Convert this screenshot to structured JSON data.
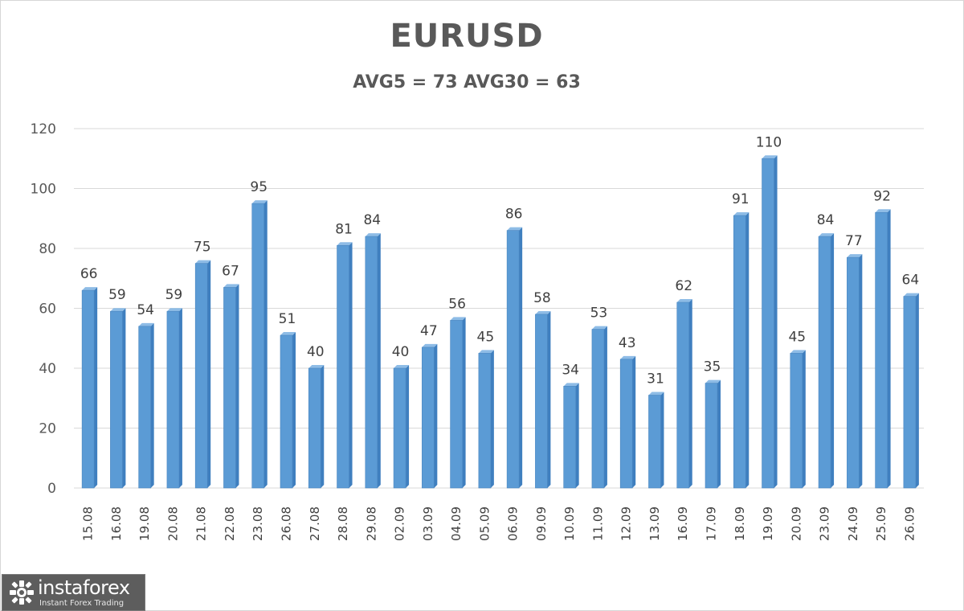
{
  "chart_data": {
    "type": "bar",
    "title": "EURUSD",
    "subtitle": "AVG5 = 73 AVG30 = 63",
    "categories": [
      "15.08",
      "16.08",
      "19.08",
      "20.08",
      "21.08",
      "22.08",
      "23.08",
      "26.08",
      "27.08",
      "28.08",
      "29.08",
      "02.09",
      "03.09",
      "04.09",
      "05.09",
      "06.09",
      "09.09",
      "10.09",
      "11.09",
      "12.09",
      "13.09",
      "16.09",
      "17.09",
      "18.09",
      "19.09",
      "20.09",
      "23.09",
      "24.09",
      "25.09",
      "26.09"
    ],
    "values": [
      66,
      59,
      54,
      59,
      75,
      67,
      95,
      51,
      40,
      81,
      84,
      40,
      47,
      56,
      45,
      86,
      58,
      34,
      53,
      43,
      31,
      62,
      35,
      91,
      110,
      45,
      84,
      77,
      92,
      64
    ],
    "ylim": [
      0,
      120
    ],
    "yticks": [
      0,
      20,
      40,
      60,
      80,
      100,
      120
    ],
    "grid": true,
    "data_labels": true,
    "bar_color": "#5b9bd5",
    "bar_side_color": "#3f7fbf",
    "grid_color": "#d9d9d9"
  },
  "logo": {
    "name": "instaforex",
    "tagline": "Instant Forex Trading"
  }
}
